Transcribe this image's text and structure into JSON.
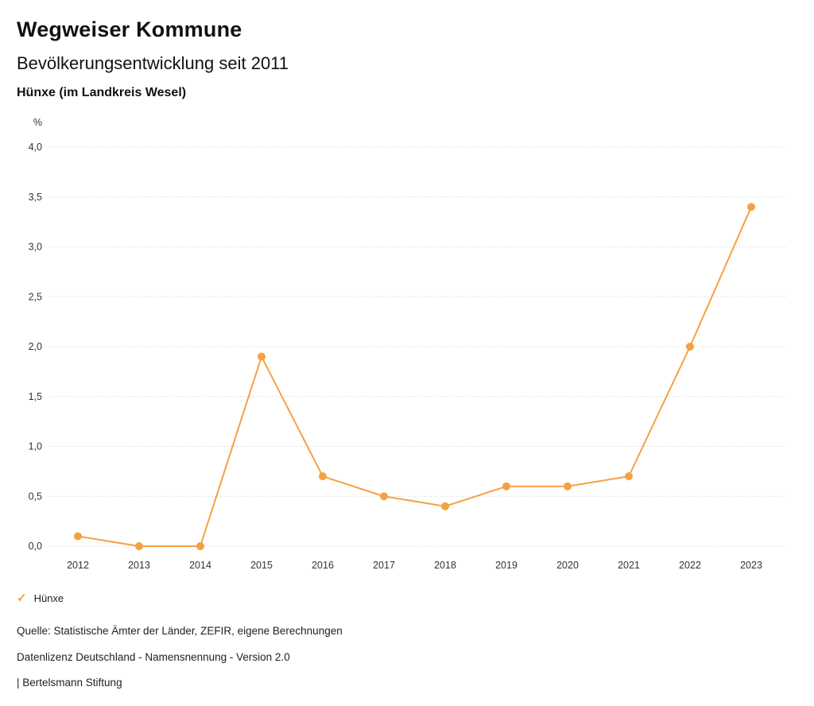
{
  "header": {
    "title": "Wegweiser Kommune",
    "subtitle": "Bevölkerungsentwicklung seit 2011",
    "location": "Hünxe (im Landkreis Wesel)"
  },
  "legend": {
    "check_icon": "✓",
    "label": "Hünxe"
  },
  "footer": {
    "source": "Quelle: Statistische Ämter der Länder, ZEFIR, eigene Berechnungen",
    "license": "Datenlizenz Deutschland - Namensnennung - Version 2.0",
    "attribution": "| Bertelsmann Stiftung"
  },
  "colors": {
    "series": "#F4A142",
    "grid": "#c9c9c9",
    "tick_text": "#333333"
  },
  "chart_data": {
    "type": "line",
    "title": "Bevölkerungsentwicklung seit 2011",
    "categories": [
      "2012",
      "2013",
      "2014",
      "2015",
      "2016",
      "2017",
      "2018",
      "2019",
      "2020",
      "2021",
      "2022",
      "2023"
    ],
    "series": [
      {
        "name": "Hünxe",
        "color": "#F4A142",
        "values": [
          0.1,
          0.0,
          0.0,
          1.9,
          0.7,
          0.5,
          0.4,
          0.6,
          0.6,
          0.7,
          2.0,
          3.4
        ]
      }
    ],
    "xlabel": "",
    "ylabel": "%",
    "ylim": [
      0,
      4.0
    ],
    "yticks": [
      0.0,
      0.5,
      1.0,
      1.5,
      2.0,
      2.5,
      3.0,
      3.5,
      4.0
    ],
    "decimal_separator": ",",
    "grid": "horizontal-dotted",
    "legend_position": "bottom-left"
  }
}
